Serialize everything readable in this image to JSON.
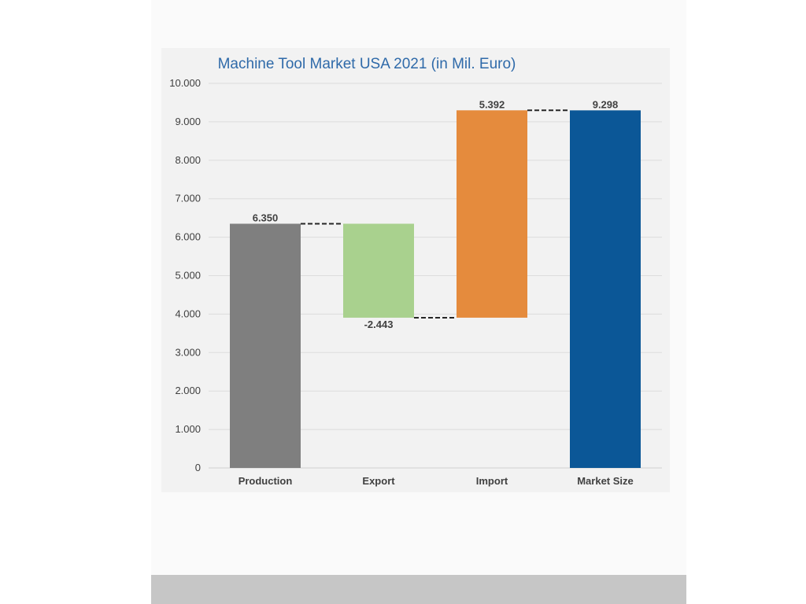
{
  "chart_data": {
    "type": "bar",
    "subtype": "waterfall",
    "title": "Machine Tool Market USA 2021 (in Mil. Euro)",
    "xlabel": "",
    "ylabel": "",
    "ylim": [
      0,
      10000
    ],
    "yticks": [
      0,
      1000,
      2000,
      3000,
      4000,
      5000,
      6000,
      7000,
      8000,
      9000,
      10000
    ],
    "ytick_labels": [
      "0",
      "1.000",
      "2.000",
      "3.000",
      "4.000",
      "5.000",
      "6.000",
      "7.000",
      "8.000",
      "9.000",
      "10.000"
    ],
    "grid": true,
    "categories": [
      "Production",
      "Export",
      "Import",
      "Market Size"
    ],
    "values": [
      6350,
      -2443,
      5392,
      9298
    ],
    "value_labels": [
      "6.350",
      "-2.443",
      "5.392",
      "9.298"
    ],
    "bar_kind": [
      "total",
      "delta",
      "delta",
      "total"
    ],
    "colors": [
      "#7f7f7f",
      "#a9d18e",
      "#e58b3d",
      "#0b5797"
    ],
    "connector_style": "dashed"
  }
}
